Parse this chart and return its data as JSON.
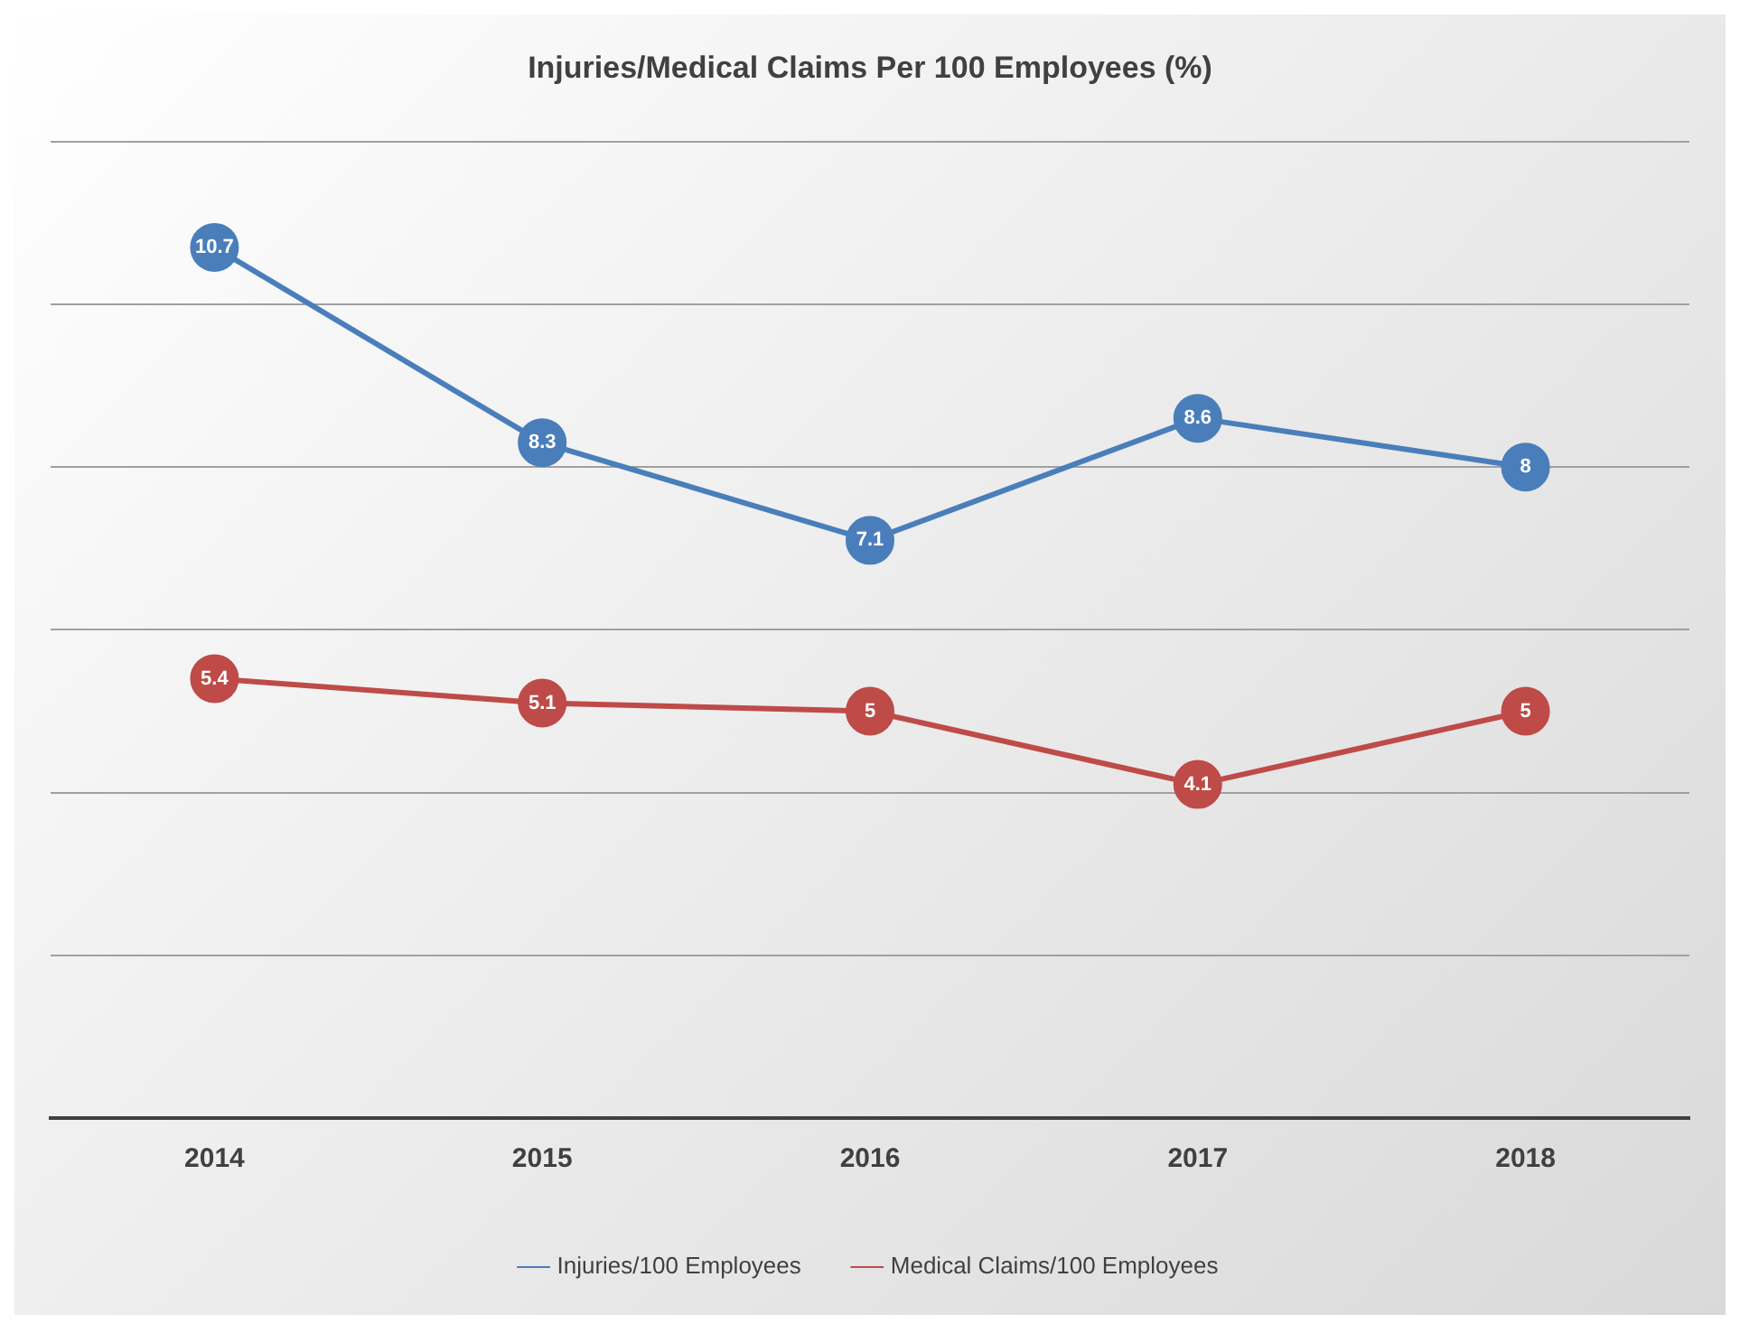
{
  "chart_data": {
    "type": "line",
    "title": "Injuries/Medical Claims Per 100 Employees (%)",
    "categories": [
      "2014",
      "2015",
      "2016",
      "2017",
      "2018"
    ],
    "series": [
      {
        "name": "Injuries/100 Employees",
        "color": "#4a7ebb",
        "values": [
          10.7,
          8.3,
          7.1,
          8.6,
          8
        ]
      },
      {
        "name": "Medical Claims/100 Employees",
        "color": "#be4b48",
        "values": [
          5.4,
          5.1,
          5,
          4.1,
          5
        ]
      }
    ],
    "ylim": [
      0,
      12
    ],
    "yticks": [
      {
        "value": 0,
        "label": null
      },
      {
        "value": 2,
        "label": null
      },
      {
        "value": 4,
        "label": null
      },
      {
        "value": 6,
        "label": null
      },
      {
        "value": 8,
        "label": null
      },
      {
        "value": 10,
        "label": null
      },
      {
        "value": 12,
        "label": null
      }
    ],
    "grid": "y",
    "tick_labels": "x",
    "legend": "bottom",
    "marker": "circle",
    "line_style": "solid",
    "data_labels": true
  }
}
